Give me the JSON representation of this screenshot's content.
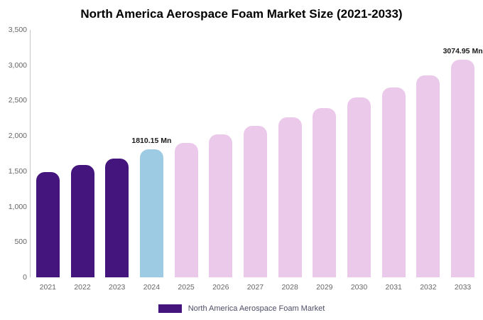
{
  "chart_data": {
    "type": "bar",
    "title": "North America Aerospace Foam Market Size (2021-2033)",
    "categories": [
      "2021",
      "2022",
      "2023",
      "2024",
      "2025",
      "2026",
      "2027",
      "2028",
      "2029",
      "2030",
      "2031",
      "2032",
      "2033"
    ],
    "values": [
      1490,
      1585,
      1680,
      1810.15,
      1900,
      2020,
      2140,
      2260,
      2390,
      2540,
      2690,
      2860,
      3074.95
    ],
    "bar_colors": [
      "#44157D",
      "#44157D",
      "#44157D",
      "#9ECBE4",
      "#EBC9EB",
      "#EBC9EB",
      "#EBC9EB",
      "#EBC9EB",
      "#EBC9EB",
      "#EBC9EB",
      "#EBC9EB",
      "#EBC9EB",
      "#EBC9EB"
    ],
    "xlabel": "",
    "ylabel": "",
    "ylim": [
      0,
      3500
    ],
    "y_ticks": [
      "0",
      "500",
      "1,000",
      "1,500",
      "2,000",
      "2,500",
      "3,000",
      "3,500"
    ],
    "y_tick_values": [
      0,
      500,
      1000,
      1500,
      2000,
      2500,
      3000,
      3500
    ],
    "grid": false,
    "legend_position": "bottom",
    "annotations": [
      {
        "category": "2024",
        "text": "1810.15 Mn"
      },
      {
        "category": "2033",
        "text": "3074.95 Mn"
      }
    ],
    "legend": {
      "label": "North America Aerospace Foam Market",
      "color": "#44157D"
    }
  },
  "colors": {
    "background": "#ffffff",
    "axis_line": "#c9c9c9",
    "tick_text": "#666666",
    "annotation_text": "#1a1a1a",
    "dark_purple": "#44157D",
    "highlight_blue": "#9ECBE4",
    "forecast_pink": "#EBC9EB"
  }
}
